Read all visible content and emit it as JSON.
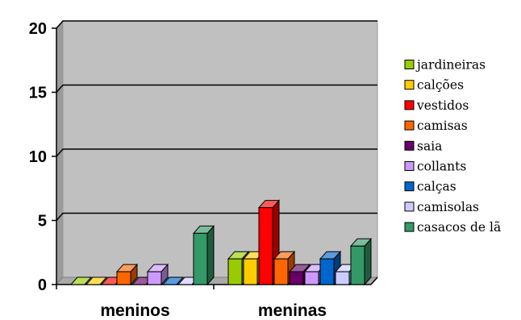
{
  "chart_data": {
    "type": "bar",
    "categories": [
      "meninos",
      "meninas"
    ],
    "series": [
      {
        "name": "jardineiras",
        "values": [
          0,
          2
        ],
        "color": "#99CC00"
      },
      {
        "name": "calções",
        "values": [
          0,
          2
        ],
        "color": "#FFCC00"
      },
      {
        "name": "vestidos",
        "values": [
          0,
          6
        ],
        "color": "#FF0000"
      },
      {
        "name": "camisas",
        "values": [
          1,
          2
        ],
        "color": "#FF6600"
      },
      {
        "name": "saia",
        "values": [
          0,
          1
        ],
        "color": "#660066"
      },
      {
        "name": "collants",
        "values": [
          1,
          1
        ],
        "color": "#CC99FF"
      },
      {
        "name": "calças",
        "values": [
          0,
          2
        ],
        "color": "#0066CC"
      },
      {
        "name": "camisolas",
        "values": [
          0,
          1
        ],
        "color": "#CCCCFF"
      },
      {
        "name": "casacos de lã",
        "values": [
          4,
          3
        ],
        "color": "#339966"
      }
    ],
    "yticks": [
      0,
      5,
      10,
      15,
      20
    ],
    "ylim": [
      0,
      20
    ],
    "grid": true,
    "legend": "right",
    "wall_color": "#C0C0C0"
  }
}
